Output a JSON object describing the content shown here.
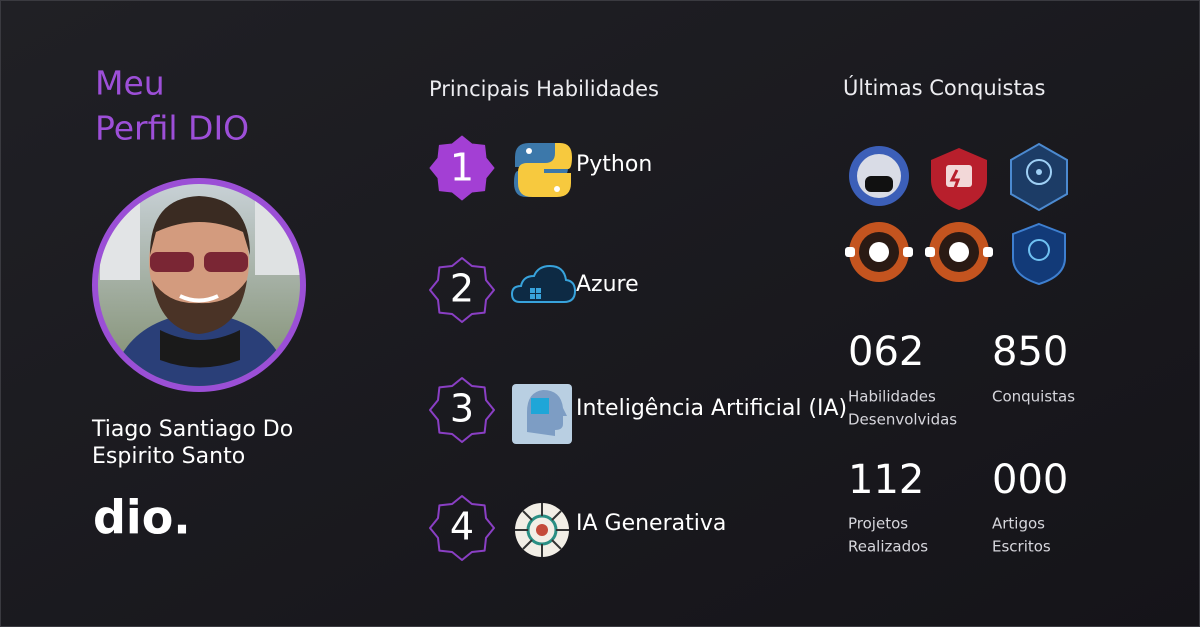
{
  "profile": {
    "title_lines": [
      "Meu",
      "Perfil DIO"
    ],
    "name_lines": [
      "Tiago Santiago Do",
      "Espirito Santo"
    ],
    "logo": "dio."
  },
  "skills": {
    "title": "Principais Habilidades",
    "items": [
      {
        "rank": 1,
        "name": "Python"
      },
      {
        "rank": 2,
        "name": "Azure"
      },
      {
        "rank": 3,
        "name": "Inteligência Artificial (IA)"
      },
      {
        "rank": 4,
        "name": "IA Generativa"
      }
    ]
  },
  "achievements": {
    "title": "Últimas Conquistas",
    "stats": [
      {
        "value": "062",
        "label_lines": [
          "Habilidades",
          "Desenvolvidas"
        ]
      },
      {
        "value": "850",
        "label_lines": [
          "Conquistas"
        ]
      },
      {
        "value": "112",
        "label_lines": [
          "Projetos",
          "Realizados"
        ]
      },
      {
        "value": "000",
        "label_lines": [
          "Artigos",
          "Escritos"
        ]
      }
    ]
  }
}
